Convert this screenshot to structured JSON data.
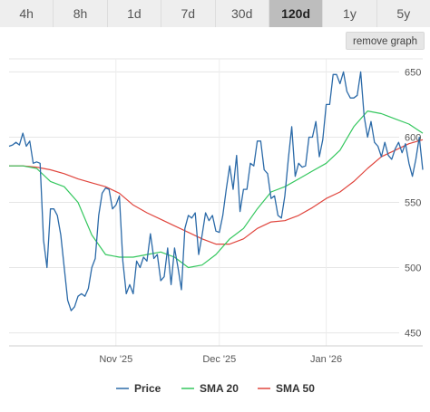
{
  "tabs": [
    {
      "label": "4h",
      "active": false
    },
    {
      "label": "8h",
      "active": false
    },
    {
      "label": "1d",
      "active": false
    },
    {
      "label": "7d",
      "active": false
    },
    {
      "label": "30d",
      "active": false
    },
    {
      "label": "120d",
      "active": true
    },
    {
      "label": "1y",
      "active": false
    },
    {
      "label": "5y",
      "active": false
    }
  ],
  "remove_graph_label": "remove graph",
  "chart_data": {
    "type": "line",
    "title": "",
    "xlabel": "",
    "ylabel": "",
    "x_range": [
      0,
      120
    ],
    "ylim": [
      440,
      660
    ],
    "y_ticks": [
      450,
      500,
      550,
      600,
      650
    ],
    "x_ticks": [
      {
        "label": "Nov '25",
        "day": 31
      },
      {
        "label": "Dec '25",
        "day": 61
      },
      {
        "label": "Jan '26",
        "day": 92
      }
    ],
    "legend_position": "bottom",
    "grid": true,
    "series": [
      {
        "name": "Price",
        "color": "#2b6aa8",
        "points": [
          [
            0,
            593
          ],
          [
            1,
            594
          ],
          [
            2,
            596
          ],
          [
            3,
            594
          ],
          [
            4,
            603
          ],
          [
            5,
            593
          ],
          [
            6,
            597
          ],
          [
            7,
            580
          ],
          [
            8,
            581
          ],
          [
            9,
            580
          ],
          [
            10,
            521
          ],
          [
            11,
            500
          ],
          [
            12,
            545
          ],
          [
            13,
            545
          ],
          [
            14,
            540
          ],
          [
            15,
            525
          ],
          [
            16,
            500
          ],
          [
            17,
            475
          ],
          [
            18,
            467
          ],
          [
            19,
            470
          ],
          [
            20,
            478
          ],
          [
            21,
            480
          ],
          [
            22,
            478
          ],
          [
            23,
            484
          ],
          [
            24,
            500
          ],
          [
            25,
            507
          ],
          [
            26,
            540
          ],
          [
            27,
            557
          ],
          [
            28,
            561
          ],
          [
            29,
            560
          ],
          [
            30,
            545
          ],
          [
            31,
            548
          ],
          [
            32,
            555
          ],
          [
            33,
            505
          ],
          [
            34,
            480
          ],
          [
            35,
            487
          ],
          [
            36,
            480
          ],
          [
            37,
            505
          ],
          [
            38,
            500
          ],
          [
            39,
            508
          ],
          [
            40,
            505
          ],
          [
            41,
            526
          ],
          [
            42,
            507
          ],
          [
            43,
            510
          ],
          [
            44,
            490
          ],
          [
            45,
            493
          ],
          [
            46,
            515
          ],
          [
            47,
            487
          ],
          [
            48,
            515
          ],
          [
            49,
            500
          ],
          [
            50,
            483
          ],
          [
            51,
            530
          ],
          [
            52,
            540
          ],
          [
            53,
            538
          ],
          [
            54,
            542
          ],
          [
            55,
            510
          ],
          [
            56,
            525
          ],
          [
            57,
            542
          ],
          [
            58,
            536
          ],
          [
            59,
            540
          ],
          [
            60,
            528
          ],
          [
            61,
            527
          ],
          [
            62,
            540
          ],
          [
            63,
            560
          ],
          [
            64,
            578
          ],
          [
            65,
            560
          ],
          [
            66,
            586
          ],
          [
            67,
            543
          ],
          [
            68,
            560
          ],
          [
            69,
            560
          ],
          [
            70,
            580
          ],
          [
            71,
            578
          ],
          [
            72,
            597
          ],
          [
            73,
            597
          ],
          [
            74,
            575
          ],
          [
            75,
            572
          ],
          [
            76,
            553
          ],
          [
            77,
            555
          ],
          [
            78,
            540
          ],
          [
            79,
            538
          ],
          [
            80,
            555
          ],
          [
            81,
            583
          ],
          [
            82,
            608
          ],
          [
            83,
            570
          ],
          [
            84,
            580
          ],
          [
            85,
            577
          ],
          [
            86,
            578
          ],
          [
            87,
            600
          ],
          [
            88,
            600
          ],
          [
            89,
            612
          ],
          [
            90,
            585
          ],
          [
            91,
            598
          ],
          [
            92,
            625
          ],
          [
            93,
            625
          ],
          [
            94,
            648
          ],
          [
            95,
            648
          ],
          [
            96,
            641
          ],
          [
            97,
            650
          ],
          [
            98,
            635
          ],
          [
            99,
            630
          ],
          [
            100,
            630
          ],
          [
            101,
            632
          ],
          [
            102,
            650
          ],
          [
            103,
            616
          ],
          [
            104,
            600
          ],
          [
            105,
            612
          ],
          [
            106,
            596
          ],
          [
            107,
            593
          ],
          [
            108,
            585
          ],
          [
            109,
            596
          ],
          [
            110,
            586
          ],
          [
            111,
            583
          ],
          [
            112,
            591
          ],
          [
            113,
            596
          ],
          [
            114,
            588
          ],
          [
            115,
            595
          ],
          [
            116,
            580
          ],
          [
            117,
            570
          ],
          [
            118,
            583
          ],
          [
            119,
            600
          ],
          [
            120,
            575
          ]
        ]
      },
      {
        "name": "SMA 20",
        "color": "#34c75e",
        "points": [
          [
            0,
            578
          ],
          [
            4,
            578
          ],
          [
            8,
            576
          ],
          [
            12,
            566
          ],
          [
            16,
            562
          ],
          [
            20,
            550
          ],
          [
            24,
            525
          ],
          [
            28,
            510
          ],
          [
            32,
            508
          ],
          [
            36,
            508
          ],
          [
            40,
            510
          ],
          [
            44,
            512
          ],
          [
            48,
            508
          ],
          [
            52,
            500
          ],
          [
            56,
            502
          ],
          [
            60,
            510
          ],
          [
            64,
            522
          ],
          [
            68,
            530
          ],
          [
            72,
            545
          ],
          [
            76,
            558
          ],
          [
            80,
            562
          ],
          [
            84,
            568
          ],
          [
            88,
            574
          ],
          [
            92,
            580
          ],
          [
            96,
            590
          ],
          [
            100,
            608
          ],
          [
            104,
            620
          ],
          [
            108,
            618
          ],
          [
            112,
            614
          ],
          [
            116,
            610
          ],
          [
            120,
            603
          ]
        ]
      },
      {
        "name": "SMA 50",
        "color": "#e0453d",
        "points": [
          [
            0,
            578
          ],
          [
            4,
            578
          ],
          [
            8,
            577
          ],
          [
            12,
            575
          ],
          [
            16,
            572
          ],
          [
            20,
            568
          ],
          [
            24,
            565
          ],
          [
            28,
            562
          ],
          [
            32,
            557
          ],
          [
            36,
            548
          ],
          [
            40,
            542
          ],
          [
            44,
            537
          ],
          [
            48,
            532
          ],
          [
            52,
            527
          ],
          [
            56,
            522
          ],
          [
            60,
            518
          ],
          [
            64,
            518
          ],
          [
            68,
            522
          ],
          [
            72,
            530
          ],
          [
            76,
            535
          ],
          [
            80,
            536
          ],
          [
            84,
            540
          ],
          [
            88,
            546
          ],
          [
            92,
            553
          ],
          [
            96,
            558
          ],
          [
            100,
            566
          ],
          [
            104,
            576
          ],
          [
            108,
            585
          ],
          [
            112,
            590
          ],
          [
            116,
            595
          ],
          [
            120,
            598
          ]
        ]
      }
    ]
  }
}
